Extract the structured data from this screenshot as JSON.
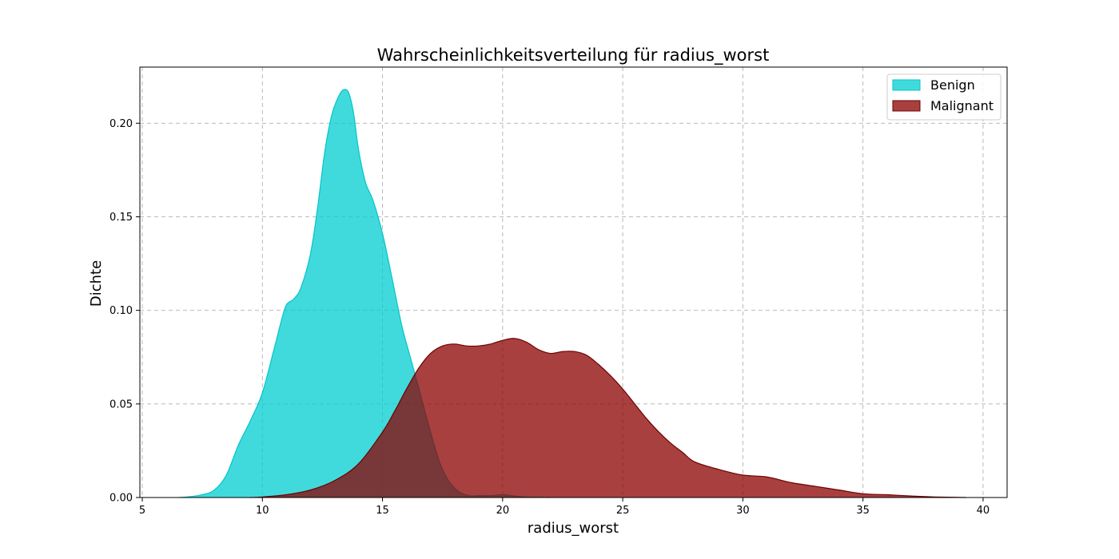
{
  "chart_data": {
    "type": "area",
    "title": "Wahrscheinlichkeitsverteilung für radius_worst",
    "xlabel": "radius_worst",
    "ylabel": "Dichte",
    "xlim": [
      4.9,
      41.0
    ],
    "ylim": [
      0.0,
      0.23
    ],
    "xticks": [
      5,
      10,
      15,
      20,
      25,
      30,
      35,
      40
    ],
    "yticks": [
      0.0,
      0.05,
      0.1,
      0.15,
      0.2
    ],
    "ytick_labels": [
      "0.00",
      "0.05",
      "0.10",
      "0.15",
      "0.20"
    ],
    "grid": true,
    "legend_position": "top-right",
    "series": [
      {
        "name": "Benign",
        "fill": "#00ced1",
        "stroke": "#00c5c8",
        "alpha": 0.75,
        "x": [
          6.5,
          7.0,
          7.5,
          8.0,
          8.5,
          9.0,
          9.5,
          10.0,
          10.5,
          10.8,
          11.0,
          11.3,
          11.6,
          12.0,
          12.3,
          12.6,
          12.9,
          13.2,
          13.4,
          13.6,
          13.8,
          14.0,
          14.3,
          14.6,
          15.0,
          15.4,
          15.8,
          16.2,
          16.6,
          17.0,
          17.4,
          17.8,
          18.2,
          18.6,
          19.0,
          19.5,
          20.0,
          20.5,
          21.0,
          22.0
        ],
        "y": [
          0.0,
          0.0005,
          0.0015,
          0.004,
          0.012,
          0.028,
          0.041,
          0.056,
          0.08,
          0.095,
          0.103,
          0.106,
          0.112,
          0.13,
          0.155,
          0.185,
          0.205,
          0.215,
          0.218,
          0.216,
          0.205,
          0.186,
          0.168,
          0.159,
          0.141,
          0.117,
          0.092,
          0.073,
          0.054,
          0.035,
          0.018,
          0.008,
          0.003,
          0.001,
          0.001,
          0.001,
          0.0015,
          0.0008,
          0.0002,
          0.0
        ]
      },
      {
        "name": "Malignant",
        "fill": "#8b0000",
        "stroke": "#6e0000",
        "alpha": 0.75,
        "x": [
          9.5,
          10.0,
          11.0,
          12.0,
          13.0,
          14.0,
          15.0,
          15.5,
          16.0,
          16.5,
          17.0,
          17.5,
          18.0,
          18.5,
          19.0,
          19.5,
          20.0,
          20.5,
          21.0,
          21.5,
          22.0,
          22.5,
          23.0,
          23.5,
          24.0,
          24.5,
          25.0,
          25.5,
          26.0,
          26.5,
          27.0,
          27.5,
          28.0,
          29.0,
          30.0,
          31.0,
          32.0,
          33.0,
          34.0,
          35.0,
          36.0,
          37.0,
          38.0,
          39.3
        ],
        "y": [
          0.0,
          0.0003,
          0.0015,
          0.004,
          0.009,
          0.018,
          0.035,
          0.046,
          0.058,
          0.069,
          0.077,
          0.081,
          0.082,
          0.081,
          0.081,
          0.082,
          0.084,
          0.085,
          0.083,
          0.079,
          0.077,
          0.078,
          0.078,
          0.076,
          0.071,
          0.065,
          0.058,
          0.05,
          0.042,
          0.035,
          0.029,
          0.024,
          0.019,
          0.015,
          0.012,
          0.011,
          0.008,
          0.006,
          0.004,
          0.002,
          0.0015,
          0.0008,
          0.0003,
          0.0
        ]
      }
    ]
  }
}
